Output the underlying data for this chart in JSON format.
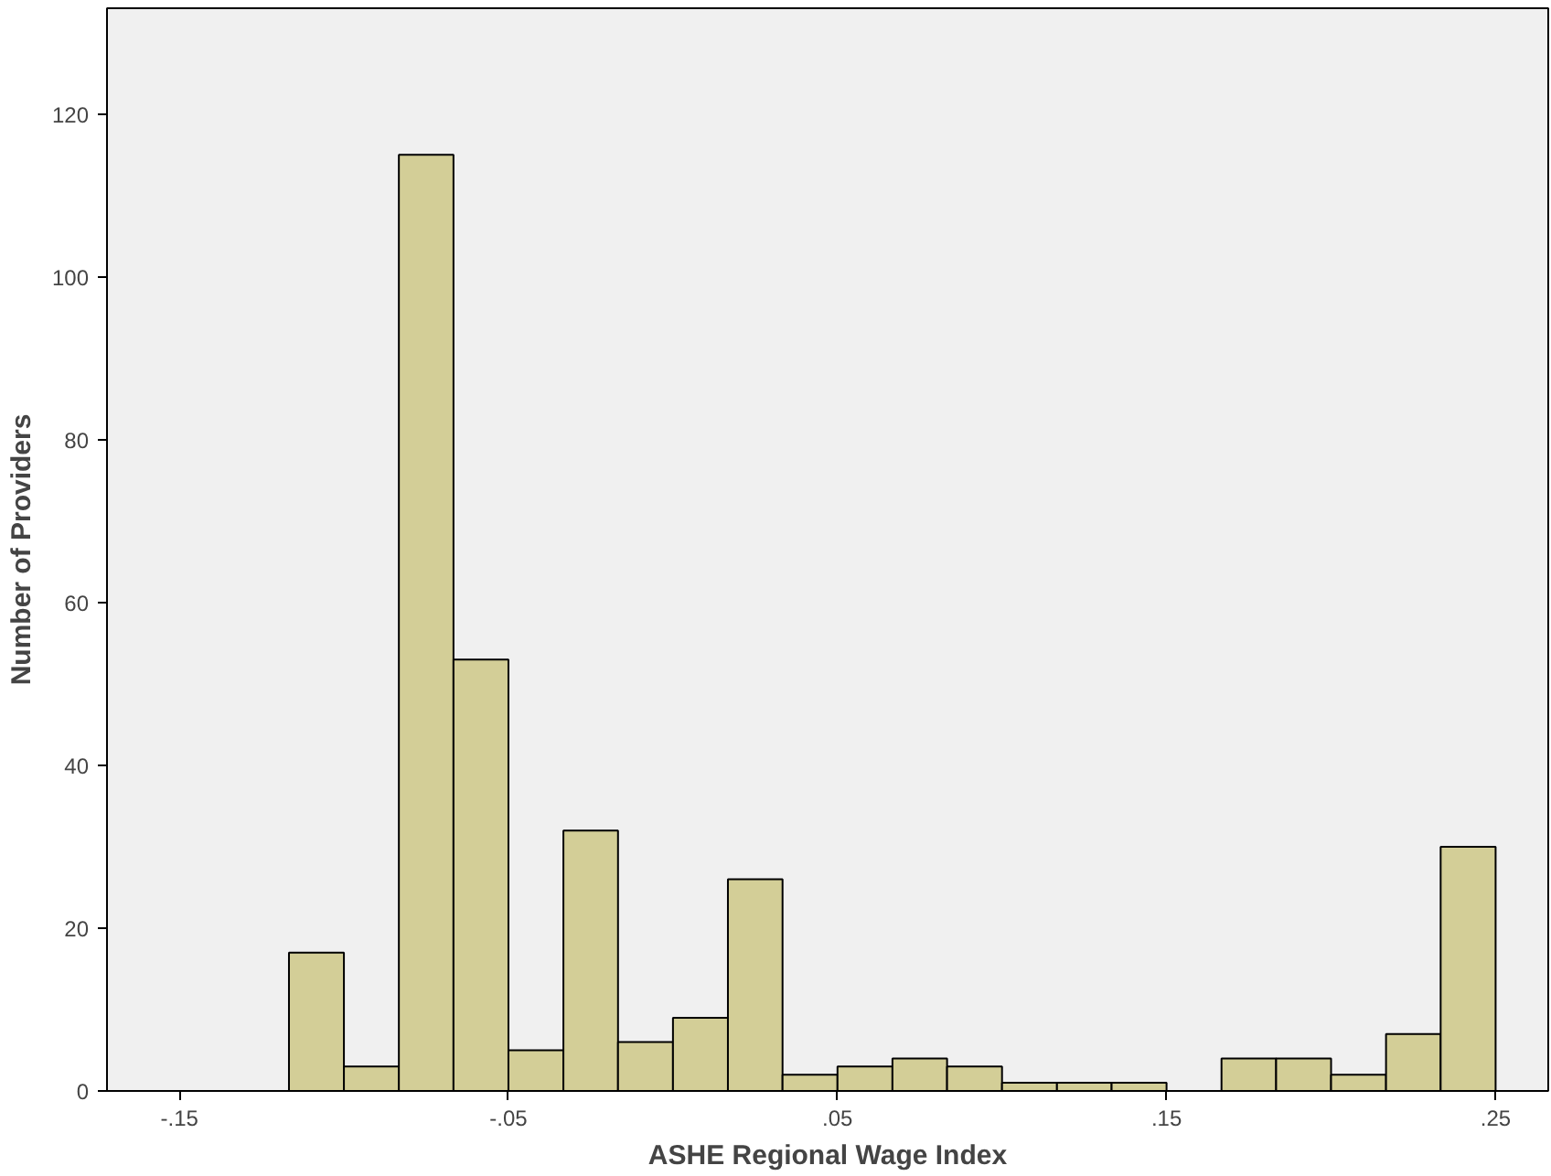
{
  "chart_data": {
    "type": "histogram",
    "xlabel": "ASHE Regional Wage Index",
    "ylabel": "Number of Providers",
    "bins": [
      -0.1167,
      -0.1,
      -0.0833,
      -0.0667,
      -0.05,
      -0.0333,
      -0.0167,
      0,
      0.0167,
      0.0333,
      0.05,
      0.0667,
      0.0833,
      0.1,
      0.1167,
      0.1333,
      0.15,
      0.1667,
      0.1833,
      0.2,
      0.2167,
      0.2333,
      0.25
    ],
    "values": [
      17,
      3,
      115,
      53,
      5,
      32,
      6,
      9,
      26,
      2,
      3,
      4,
      3,
      1,
      1,
      1,
      0,
      4,
      4,
      2,
      7,
      30
    ],
    "color": "#d3ce97",
    "xlim": [
      -0.172,
      0.266
    ],
    "ylim": [
      0,
      133
    ],
    "xticks": [
      {
        "value": -0.15,
        "label": "-.15"
      },
      {
        "value": -0.05,
        "label": "-.05"
      },
      {
        "value": 0.05,
        "label": ".05"
      },
      {
        "value": 0.15,
        "label": ".15"
      },
      {
        "value": 0.25,
        "label": ".25"
      }
    ],
    "yticks": [
      0,
      20,
      40,
      60,
      80,
      100,
      120
    ],
    "grid": false
  }
}
